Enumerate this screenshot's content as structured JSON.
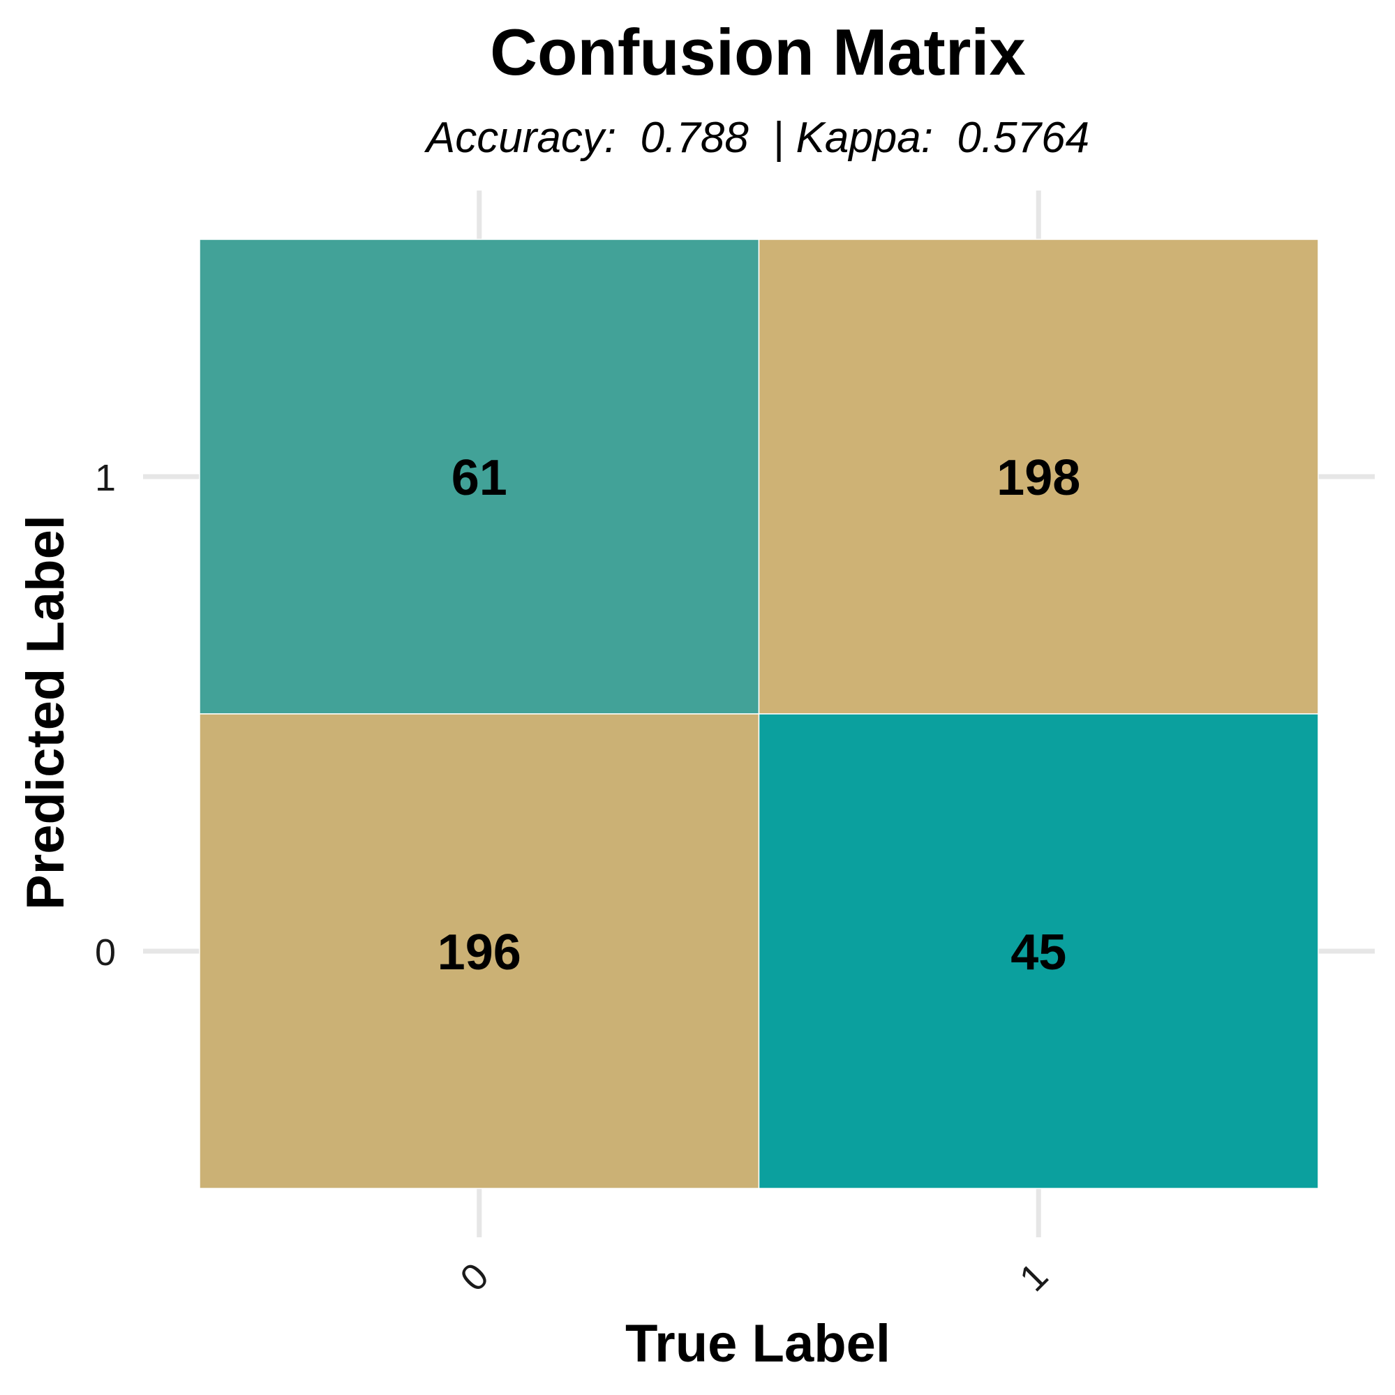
{
  "chart_data": {
    "type": "heatmap",
    "title": "Confusion Matrix",
    "subtitle": "Accuracy:  0.788  | Kappa:  0.5764",
    "xlabel": "True Label",
    "ylabel": "Predicted Label",
    "x_categories": [
      "0",
      "1"
    ],
    "y_categories": [
      "0",
      "1"
    ],
    "cells": [
      {
        "true": "0",
        "predicted": "1",
        "value": 61,
        "color": "#42a298"
      },
      {
        "true": "1",
        "predicted": "1",
        "value": 198,
        "color": "#ceb275"
      },
      {
        "true": "0",
        "predicted": "0",
        "value": 196,
        "color": "#cbb175"
      },
      {
        "true": "1",
        "predicted": "0",
        "value": 45,
        "color": "#0ba09e"
      }
    ],
    "grid": true,
    "legend": "none"
  }
}
